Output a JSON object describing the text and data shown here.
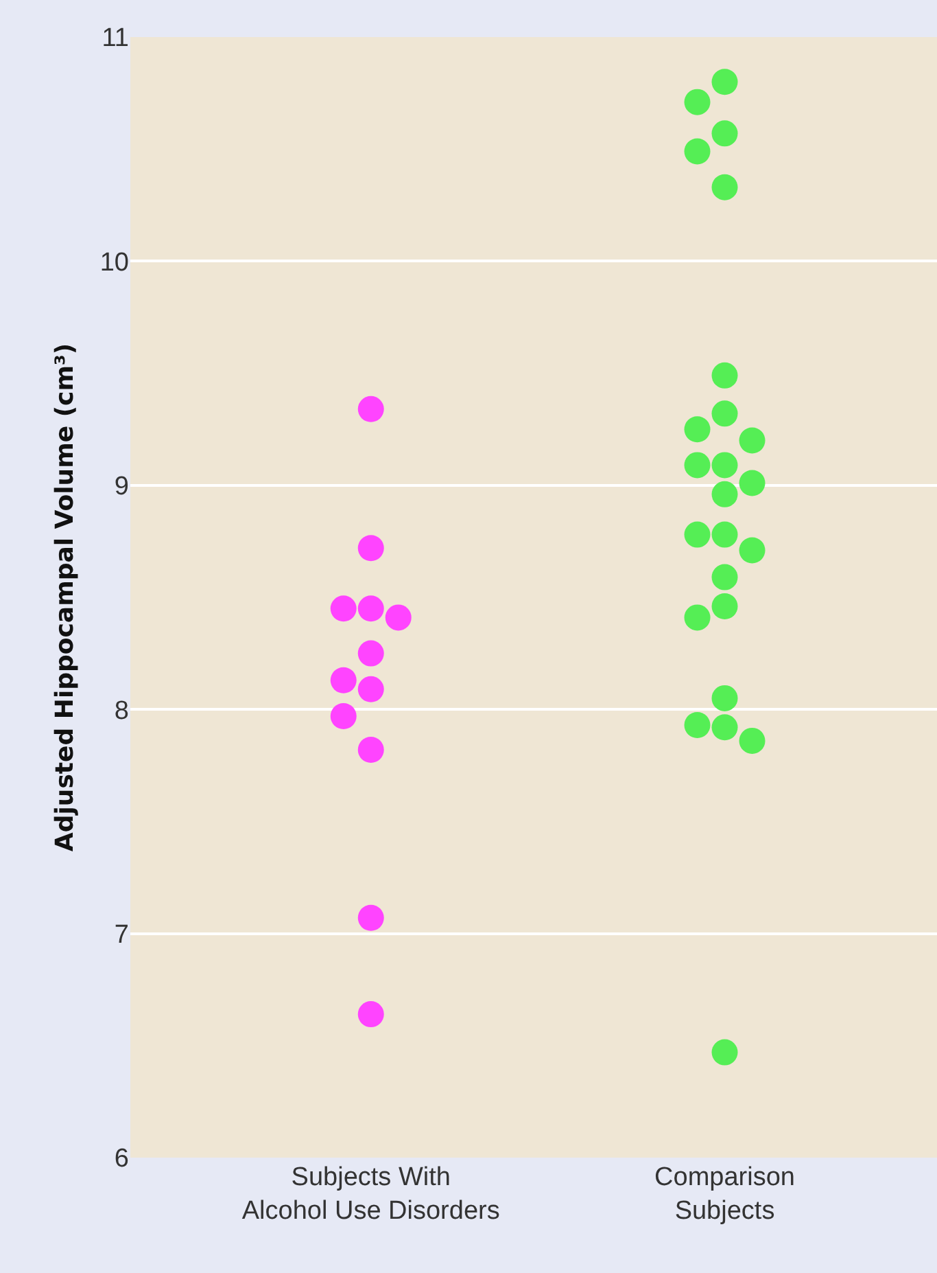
{
  "chart_data": {
    "type": "scatter",
    "ylabel": "Adjusted Hippocampal Volume (cm³)",
    "categories": [
      "Subjects With\nAlcohol Use Disorders",
      "Comparison\nSubjects"
    ],
    "ylim": [
      6,
      11
    ],
    "yticks": [
      6,
      7,
      8,
      9,
      10,
      11
    ],
    "grid": "y",
    "marker": "circle",
    "series": [
      {
        "color": "#ff44ff",
        "x": [
          "Subjects With\nAlcohol Use Disorders",
          "Subjects With\nAlcohol Use Disorders",
          "Subjects With\nAlcohol Use Disorders",
          "Subjects With\nAlcohol Use Disorders",
          "Subjects With\nAlcohol Use Disorders",
          "Subjects With\nAlcohol Use Disorders",
          "Subjects With\nAlcohol Use Disorders",
          "Subjects With\nAlcohol Use Disorders",
          "Subjects With\nAlcohol Use Disorders",
          "Subjects With\nAlcohol Use Disorders",
          "Subjects With\nAlcohol Use Disorders",
          "Subjects With\nAlcohol Use Disorders"
        ],
        "values": [
          9.34,
          8.72,
          8.45,
          8.45,
          8.41,
          8.25,
          8.13,
          8.09,
          7.97,
          7.82,
          7.07,
          6.64
        ]
      },
      {
        "color": "#55ee55",
        "x": [
          "Comparison\nSubjects",
          "Comparison\nSubjects",
          "Comparison\nSubjects",
          "Comparison\nSubjects",
          "Comparison\nSubjects",
          "Comparison\nSubjects",
          "Comparison\nSubjects",
          "Comparison\nSubjects",
          "Comparison\nSubjects",
          "Comparison\nSubjects",
          "Comparison\nSubjects",
          "Comparison\nSubjects",
          "Comparison\nSubjects",
          "Comparison\nSubjects",
          "Comparison\nSubjects",
          "Comparison\nSubjects",
          "Comparison\nSubjects",
          "Comparison\nSubjects",
          "Comparison\nSubjects",
          "Comparison\nSubjects",
          "Comparison\nSubjects",
          "Comparison\nSubjects",
          "Comparison\nSubjects",
          "Comparison\nSubjects"
        ],
        "values": [
          10.8,
          10.71,
          10.57,
          10.49,
          10.33,
          9.49,
          9.32,
          9.25,
          9.2,
          9.09,
          9.09,
          9.01,
          8.96,
          8.78,
          8.78,
          8.71,
          8.59,
          8.46,
          8.41,
          8.05,
          7.93,
          7.92,
          7.86,
          6.47
        ]
      }
    ]
  }
}
